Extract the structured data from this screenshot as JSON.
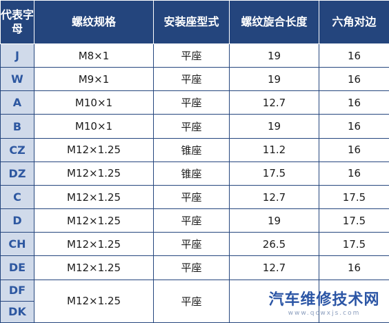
{
  "headers": [
    "代表字母",
    "螺纹规格",
    "安装座型式",
    "螺纹旋合长度",
    "六角对边"
  ],
  "rows": [
    [
      "J",
      "M8×1",
      "平座",
      "19",
      "16"
    ],
    [
      "W",
      "M9×1",
      "平座",
      "19",
      "16"
    ],
    [
      "A",
      "M10×1",
      "平座",
      "12.7",
      "16"
    ],
    [
      "B",
      "M10×1",
      "平座",
      "19",
      "16"
    ],
    [
      "CZ",
      "M12×1.25",
      "锥座",
      "11.2",
      "16"
    ],
    [
      "DZ",
      "M12×1.25",
      "锥座",
      "17.5",
      "16"
    ],
    [
      "C",
      "M12×1.25",
      "平座",
      "12.7",
      "17.5"
    ],
    [
      "D",
      "M12×1.25",
      "平座",
      "19",
      "17.5"
    ],
    [
      "CH",
      "M12×1.25",
      "平座",
      "26.5",
      "17.5"
    ],
    [
      "DE",
      "M12×1.25",
      "平座",
      "12.7",
      "16"
    ]
  ],
  "last_group": {
    "codes": [
      "DF",
      "DK"
    ],
    "thread": "M12×1.25",
    "seat": "平座"
  },
  "watermark": {
    "title": "汽车维修技术网",
    "url": "www.qcwxjs.com"
  }
}
